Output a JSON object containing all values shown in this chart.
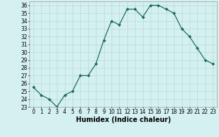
{
  "x": [
    0,
    1,
    2,
    3,
    4,
    5,
    6,
    7,
    8,
    9,
    10,
    11,
    12,
    13,
    14,
    15,
    16,
    17,
    18,
    19,
    20,
    21,
    22,
    23
  ],
  "y": [
    25.5,
    24.5,
    24.0,
    23.0,
    24.5,
    25.0,
    27.0,
    27.0,
    28.5,
    31.5,
    34.0,
    33.5,
    35.5,
    35.5,
    34.5,
    36.0,
    36.0,
    35.5,
    35.0,
    33.0,
    32.0,
    30.5,
    29.0,
    28.5
  ],
  "line_color": "#1a6b5a",
  "marker": "D",
  "marker_size": 2.0,
  "bg_color": "#d4f0f0",
  "grid_color": "#b8d8d8",
  "xlabel": "Humidex (Indice chaleur)",
  "ylim": [
    23,
    36.5
  ],
  "xlim": [
    -0.5,
    23.5
  ],
  "yticks": [
    23,
    24,
    25,
    26,
    27,
    28,
    29,
    30,
    31,
    32,
    33,
    34,
    35,
    36
  ],
  "xticks": [
    0,
    1,
    2,
    3,
    4,
    5,
    6,
    7,
    8,
    9,
    10,
    11,
    12,
    13,
    14,
    15,
    16,
    17,
    18,
    19,
    20,
    21,
    22,
    23
  ],
  "tick_fontsize": 5.5,
  "xlabel_fontsize": 7.0
}
